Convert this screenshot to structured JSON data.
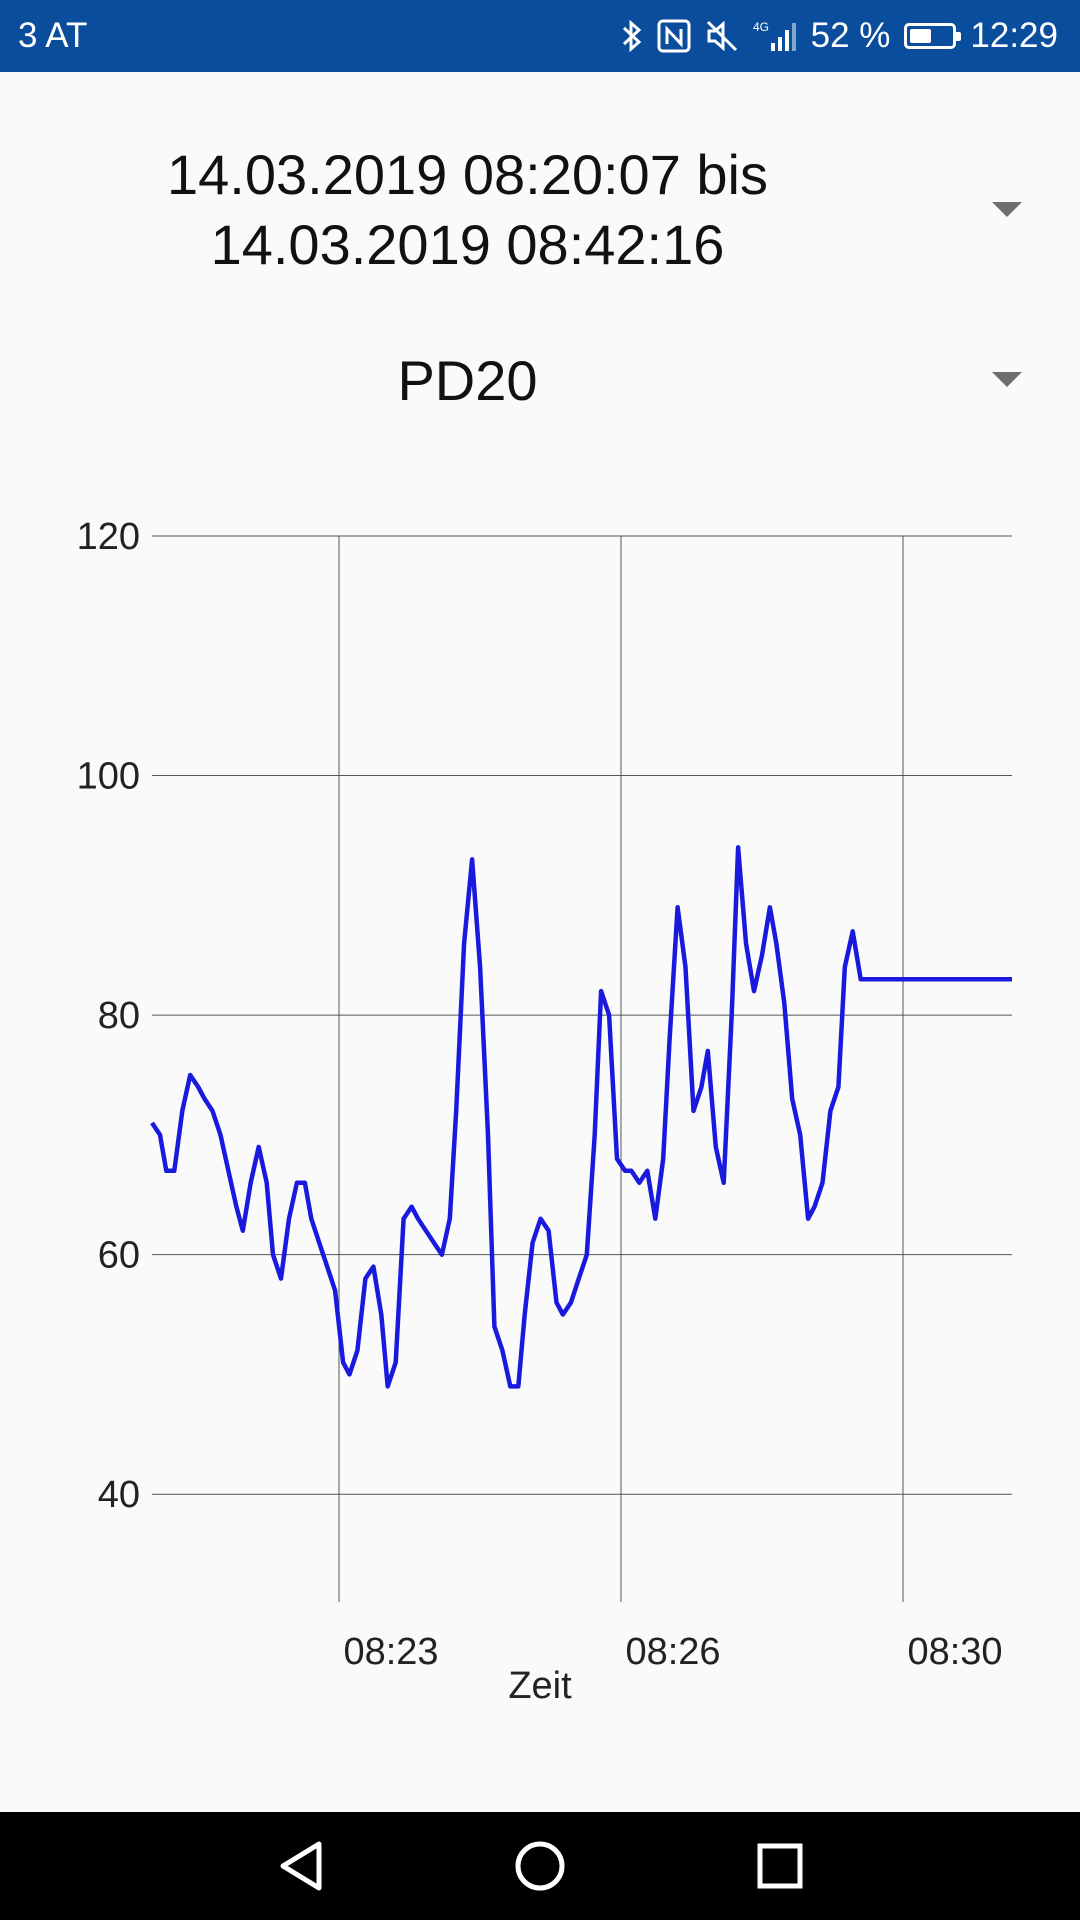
{
  "status_bar": {
    "carrier": "3 AT",
    "battery_text": "52 %",
    "battery_level": 0.52,
    "time": "12:29",
    "icons": [
      "bluetooth-icon",
      "nfc-icon",
      "mute-icon",
      "signal-4g-icon",
      "battery-icon"
    ]
  },
  "time_range": {
    "line1": "14.03.2019 08:20:07 bis",
    "line2": "14.03.2019 08:42:16"
  },
  "sensor": {
    "selected": "PD20"
  },
  "nav_bar": {
    "icons": [
      "back-icon",
      "home-icon",
      "recents-icon"
    ]
  },
  "colors": {
    "status_bar": "#0a4d9c",
    "series_line": "#1a1adf",
    "grid": "#555555"
  },
  "chart_data": {
    "type": "line",
    "title": "",
    "xlabel": "Zeit",
    "ylabel": "",
    "ylim": [
      31,
      120
    ],
    "yticks": [
      40,
      60,
      80,
      100,
      120
    ],
    "xticks": [
      {
        "x": "08:23",
        "label": "08:23"
      },
      {
        "x": "08:26",
        "label": "08:26"
      },
      {
        "x": "08:30",
        "label": "08:30"
      }
    ],
    "xlim": [
      "08:21:00",
      "08:30:00"
    ],
    "grid": true,
    "series": [
      {
        "color": "#1a1adf",
        "x": [
          "08:21:00",
          "08:21:05",
          "08:21:09",
          "08:21:14",
          "08:21:19",
          "08:21:24",
          "08:21:29",
          "08:21:33",
          "08:21:38",
          "08:21:43",
          "08:21:48",
          "08:21:53",
          "08:21:57",
          "08:22:02",
          "08:22:07",
          "08:22:12",
          "08:22:16",
          "08:22:21",
          "08:22:26",
          "08:22:31",
          "08:22:36",
          "08:22:40",
          "08:22:45",
          "08:22:50",
          "08:22:55",
          "08:23:00",
          "08:23:04",
          "08:23:09",
          "08:23:14",
          "08:23:19",
          "08:23:24",
          "08:23:28",
          "08:23:33",
          "08:23:38",
          "08:23:43",
          "08:23:47",
          "08:23:52",
          "08:23:57",
          "08:24:02",
          "08:24:07",
          "08:24:11",
          "08:24:16",
          "08:24:21",
          "08:24:26",
          "08:24:31",
          "08:24:35",
          "08:24:40",
          "08:24:45",
          "08:24:50",
          "08:24:54",
          "08:24:59",
          "08:25:04",
          "08:25:09",
          "08:25:14",
          "08:25:18",
          "08:25:23",
          "08:25:28",
          "08:25:33",
          "08:25:38",
          "08:25:42",
          "08:25:47",
          "08:25:52",
          "08:25:57",
          "08:26:01",
          "08:26:06",
          "08:26:11",
          "08:26:16",
          "08:26:21",
          "08:26:25",
          "08:26:30",
          "08:26:35",
          "08:26:40",
          "08:26:45",
          "08:26:49",
          "08:26:54",
          "08:26:59",
          "08:27:04",
          "08:27:08",
          "08:27:13",
          "08:27:18",
          "08:27:23",
          "08:27:28",
          "08:27:32",
          "08:27:37",
          "08:27:42",
          "08:27:47",
          "08:27:52",
          "08:27:56",
          "08:28:01",
          "08:28:06",
          "08:28:11",
          "08:28:15",
          "08:28:20",
          "08:28:25",
          "08:28:30",
          "08:28:35",
          "08:28:39",
          "08:28:44",
          "08:28:49",
          "08:28:54",
          "08:28:59",
          "08:29:03",
          "08:29:08",
          "08:29:13",
          "08:29:18",
          "08:29:22",
          "08:29:27",
          "08:29:32",
          "08:29:37",
          "08:29:42",
          "08:29:46",
          "08:29:51",
          "08:29:56",
          "08:30:00"
        ],
        "values": [
          71,
          70,
          67,
          67,
          72,
          75,
          74,
          73,
          72,
          70,
          67,
          64,
          62,
          66,
          69,
          66,
          60,
          58,
          63,
          66,
          66,
          63,
          61,
          59,
          57,
          51,
          50,
          52,
          58,
          59,
          55,
          49,
          51,
          63,
          64,
          63,
          62,
          61,
          60,
          63,
          72,
          86,
          93,
          84,
          70,
          54,
          52,
          49,
          49,
          55,
          61,
          63,
          62,
          56,
          55,
          56,
          58,
          60,
          70,
          82,
          80,
          68,
          67,
          67,
          66,
          67,
          63,
          68,
          78,
          89,
          84,
          72,
          74,
          77,
          69,
          66,
          80,
          94,
          86,
          82,
          85,
          89,
          86,
          81,
          73,
          70,
          63,
          64,
          66,
          72,
          74,
          84,
          87,
          83,
          83,
          83,
          83,
          83,
          83,
          83,
          83,
          83,
          83,
          83,
          83,
          83,
          83,
          83,
          83,
          83,
          83,
          83,
          83,
          83
        ]
      }
    ]
  }
}
